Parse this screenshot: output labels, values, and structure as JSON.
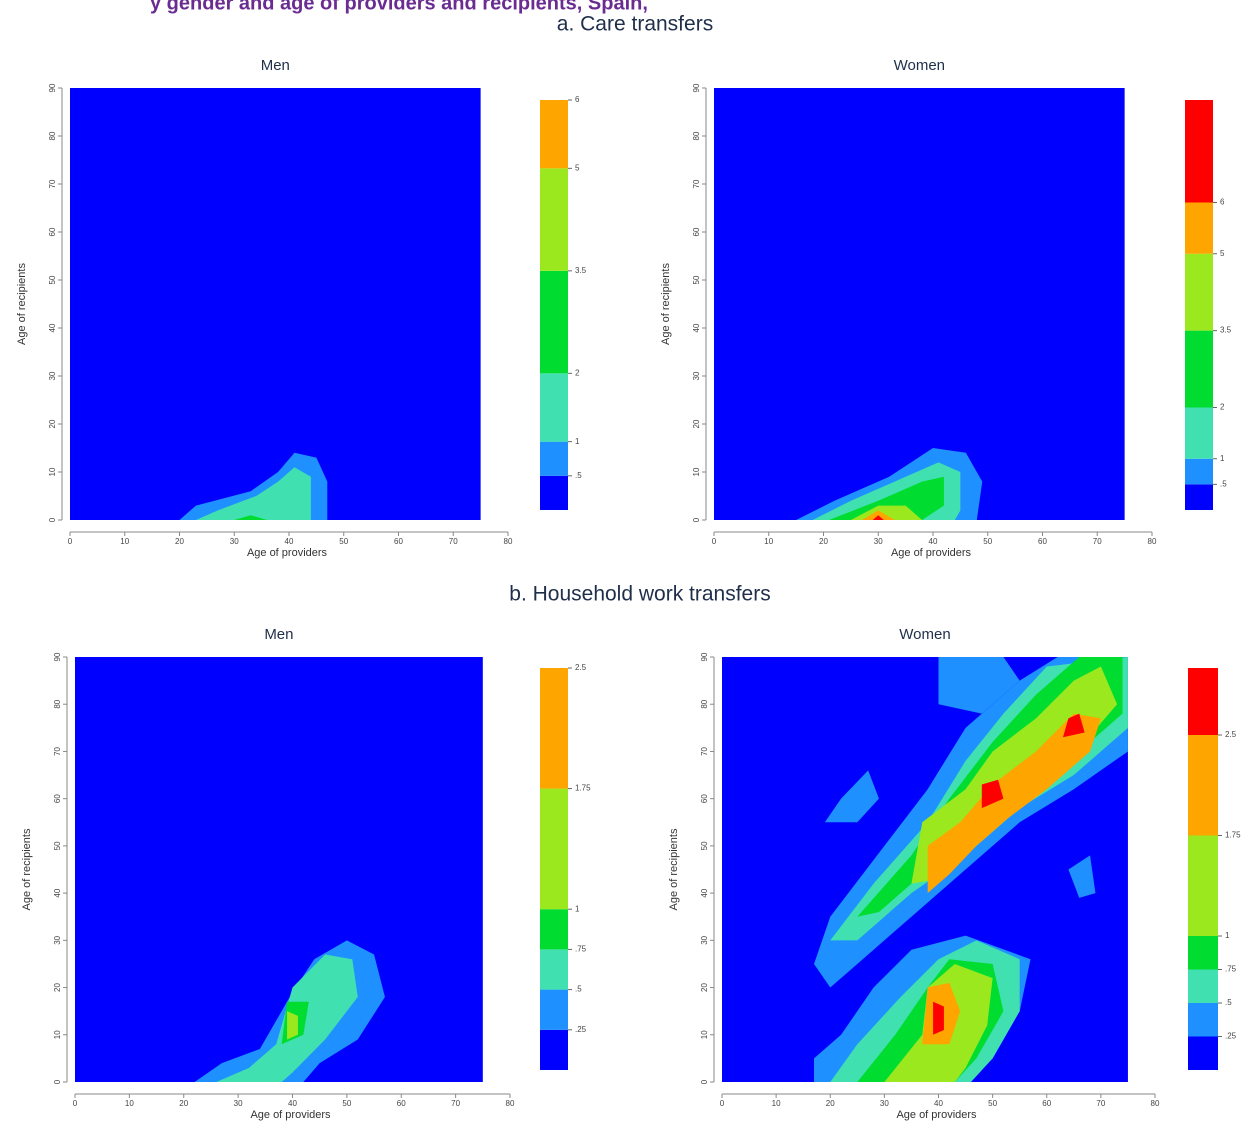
{
  "header": {
    "title": "y gender and age of providers and recipients, Spain,",
    "sections": [
      "a. Care transfers",
      "b. Household work transfers"
    ]
  },
  "chart_data": [
    {
      "type": "contour",
      "title": "Men",
      "xlabel": "Age of providers",
      "ylabel": "Age of recipients",
      "xlim": [
        0,
        80
      ],
      "xticks": [
        0,
        10,
        20,
        30,
        40,
        50,
        60,
        70,
        80
      ],
      "ylim": [
        0,
        90
      ],
      "yticks": [
        0,
        10,
        20,
        30,
        40,
        50,
        60,
        70,
        80,
        90
      ],
      "zlim": [
        0,
        6
      ],
      "zticks": [
        {
          "value": 0.5,
          "label": ".5"
        },
        1,
        2,
        3.5,
        5,
        6
      ],
      "colors": [
        "#0000ff",
        "#1e90ff",
        "#40e0b0",
        "#00dd30",
        "#9be81e",
        "#ffa500",
        "#ff0000"
      ],
      "regions": [
        {
          "band": 0,
          "x": [
            0,
            75,
            75,
            0
          ],
          "y": [
            0,
            0,
            90,
            90
          ]
        },
        {
          "band": 1,
          "x": [
            20,
            23,
            33,
            38,
            41,
            45,
            47,
            47
          ],
          "y": [
            0,
            3,
            6,
            10,
            14,
            13,
            8,
            0
          ]
        },
        {
          "band": 2,
          "x": [
            23,
            27,
            34,
            38,
            41,
            44,
            44
          ],
          "y": [
            0,
            2,
            5,
            8,
            11,
            9,
            0
          ]
        },
        {
          "band": 3,
          "x": [
            30,
            33,
            36
          ],
          "y": [
            0,
            1,
            0
          ]
        }
      ]
    },
    {
      "type": "contour",
      "title": "Women",
      "xlabel": "Age of providers",
      "ylabel": "Age of recipients",
      "xlim": [
        0,
        80
      ],
      "xticks": [
        0,
        10,
        20,
        30,
        40,
        50,
        60,
        70,
        80
      ],
      "ylim": [
        0,
        90
      ],
      "yticks": [
        0,
        10,
        20,
        30,
        40,
        50,
        60,
        70,
        80,
        90
      ],
      "zlim": [
        0,
        8
      ],
      "zticks": [
        {
          "value": 0.5,
          "label": ".5"
        },
        1,
        2,
        3.5,
        5,
        6
      ],
      "colors": [
        "#0000ff",
        "#1e90ff",
        "#40e0b0",
        "#00dd30",
        "#9be81e",
        "#ffa500",
        "#ff0000"
      ],
      "regions": [
        {
          "band": 0,
          "x": [
            0,
            75,
            75,
            0
          ],
          "y": [
            0,
            0,
            90,
            90
          ]
        },
        {
          "band": 1,
          "x": [
            15,
            22,
            32,
            40,
            46,
            49,
            48
          ],
          "y": [
            0,
            4,
            9,
            15,
            14,
            8,
            0
          ]
        },
        {
          "band": 2,
          "x": [
            18,
            25,
            35,
            41,
            45,
            45,
            44
          ],
          "y": [
            0,
            4,
            9,
            12,
            10,
            2,
            0
          ]
        },
        {
          "band": 3,
          "x": [
            21,
            30,
            38,
            42,
            42,
            38
          ],
          "y": [
            0,
            4,
            8,
            9,
            3,
            0
          ]
        },
        {
          "band": 4,
          "x": [
            25,
            30,
            35,
            38
          ],
          "y": [
            0,
            3,
            3,
            0
          ]
        },
        {
          "band": 5,
          "x": [
            27,
            30,
            33
          ],
          "y": [
            0,
            2,
            0
          ]
        },
        {
          "band": 6,
          "x": [
            29,
            30,
            31
          ],
          "y": [
            0,
            1,
            0
          ]
        }
      ]
    },
    {
      "type": "contour",
      "title": "Men",
      "xlabel": "Age of providers",
      "ylabel": "Age of recipients",
      "xlim": [
        0,
        80
      ],
      "xticks": [
        0,
        10,
        20,
        30,
        40,
        50,
        60,
        70,
        80
      ],
      "ylim": [
        0,
        90
      ],
      "yticks": [
        0,
        10,
        20,
        30,
        40,
        50,
        60,
        70,
        80,
        90
      ],
      "zlim": [
        0,
        2.5
      ],
      "zticks": [
        {
          "value": 0.25,
          "label": ".25"
        },
        {
          "value": 0.5,
          "label": ".5"
        },
        {
          "value": 0.75,
          "label": ".75"
        },
        1,
        1.75,
        2.5
      ],
      "colors": [
        "#0000ff",
        "#1e90ff",
        "#40e0b0",
        "#00dd30",
        "#9be81e",
        "#ffa500",
        "#ff0000"
      ],
      "regions": [
        {
          "band": 0,
          "x": [
            0,
            75,
            75,
            0
          ],
          "y": [
            0,
            0,
            90,
            90
          ]
        },
        {
          "band": 1,
          "x": [
            22,
            27,
            34,
            40,
            44,
            50,
            55,
            57,
            52,
            45,
            42
          ],
          "y": [
            0,
            4,
            7,
            19,
            26,
            30,
            27,
            18,
            9,
            4,
            0
          ]
        },
        {
          "band": 2,
          "x": [
            26,
            32,
            37,
            40,
            46,
            51,
            52,
            46,
            40,
            38
          ],
          "y": [
            0,
            3,
            8,
            20,
            27,
            26,
            18,
            9,
            2,
            0
          ]
        },
        {
          "band": 3,
          "x": [
            38,
            39,
            43,
            42
          ],
          "y": [
            8,
            17,
            17,
            10
          ]
        },
        {
          "band": 4,
          "x": [
            39,
            39,
            41,
            41
          ],
          "y": [
            9,
            15,
            14,
            10
          ]
        }
      ]
    },
    {
      "type": "contour",
      "title": "Women",
      "xlabel": "Age of providers",
      "ylabel": "Age of recipients",
      "xlim": [
        0,
        80
      ],
      "xticks": [
        0,
        10,
        20,
        30,
        40,
        50,
        60,
        70,
        80
      ],
      "ylim": [
        0,
        90
      ],
      "yticks": [
        0,
        10,
        20,
        30,
        40,
        50,
        60,
        70,
        80,
        90
      ],
      "zlim": [
        0,
        3
      ],
      "zticks": [
        {
          "value": 0.25,
          "label": ".25"
        },
        {
          "value": 0.5,
          "label": ".5"
        },
        {
          "value": 0.75,
          "label": ".75"
        },
        1,
        1.75,
        2.5
      ],
      "colors": [
        "#0000ff",
        "#1e90ff",
        "#40e0b0",
        "#00dd30",
        "#9be81e",
        "#ffa500",
        "#ff0000"
      ],
      "regions": [
        {
          "band": 0,
          "x": [
            0,
            75,
            75,
            0
          ],
          "y": [
            0,
            0,
            90,
            90
          ]
        },
        {
          "band": 1,
          "x": [
            17,
            20,
            30,
            38,
            45,
            55,
            62,
            75,
            75,
            65,
            55,
            45,
            35,
            25,
            20
          ],
          "y": [
            25,
            35,
            50,
            62,
            75,
            85,
            90,
            90,
            70,
            62,
            55,
            45,
            35,
            25,
            20
          ]
        },
        {
          "band": 1,
          "x": [
            17,
            17,
            22,
            28,
            35,
            45,
            57,
            55,
            50,
            45
          ],
          "y": [
            0,
            5,
            10,
            20,
            28,
            31,
            26,
            15,
            5,
            0
          ]
        },
        {
          "band": 1,
          "x": [
            40,
            40,
            48,
            55,
            52
          ],
          "y": [
            90,
            80,
            78,
            85,
            90
          ]
        },
        {
          "band": 1,
          "x": [
            19,
            22,
            27,
            29,
            25
          ],
          "y": [
            55,
            60,
            66,
            60,
            55
          ]
        },
        {
          "band": 1,
          "x": [
            64,
            66,
            69,
            68
          ],
          "y": [
            45,
            39,
            40,
            48
          ]
        },
        {
          "band": 2,
          "x": [
            20,
            28,
            38,
            45,
            52,
            60,
            75,
            75,
            65,
            55,
            45,
            35,
            25
          ],
          "y": [
            30,
            42,
            55,
            68,
            78,
            88,
            90,
            75,
            65,
            58,
            48,
            40,
            30
          ]
        },
        {
          "band": 2,
          "x": [
            20,
            25,
            33,
            40,
            47,
            55,
            55,
            50,
            46
          ],
          "y": [
            0,
            8,
            18,
            26,
            30,
            26,
            15,
            5,
            0
          ]
        },
        {
          "band": 3,
          "x": [
            25,
            35,
            42,
            50,
            58,
            66,
            74,
            74,
            66,
            57,
            47,
            37,
            29
          ],
          "y": [
            35,
            48,
            60,
            72,
            82,
            90,
            90,
            78,
            70,
            62,
            52,
            44,
            36
          ]
        },
        {
          "band": 3,
          "x": [
            25,
            32,
            38,
            42,
            50,
            52,
            47,
            43
          ],
          "y": [
            0,
            10,
            20,
            26,
            25,
            15,
            5,
            0
          ]
        },
        {
          "band": 4,
          "x": [
            35,
            37,
            45,
            50,
            58,
            65,
            70,
            73,
            67,
            60,
            52,
            45,
            40
          ],
          "y": [
            42,
            55,
            62,
            70,
            77,
            85,
            88,
            80,
            72,
            65,
            58,
            50,
            43
          ]
        },
        {
          "band": 4,
          "x": [
            30,
            37,
            38,
            43,
            50,
            49,
            45,
            43
          ],
          "y": [
            0,
            10,
            20,
            25,
            22,
            12,
            3,
            0
          ]
        },
        {
          "band": 5,
          "x": [
            38,
            38,
            44,
            50,
            58,
            65,
            70,
            68,
            60,
            53,
            47,
            42
          ],
          "y": [
            40,
            50,
            55,
            63,
            70,
            78,
            77,
            70,
            62,
            56,
            50,
            44
          ]
        },
        {
          "band": 5,
          "x": [
            37,
            38,
            42,
            44,
            42
          ],
          "y": [
            8,
            20,
            21,
            15,
            8
          ]
        },
        {
          "band": 6,
          "x": [
            48,
            48,
            51,
            52
          ],
          "y": [
            58,
            63,
            64,
            60
          ]
        },
        {
          "band": 6,
          "x": [
            63,
            64,
            66,
            67
          ],
          "y": [
            73,
            77,
            78,
            74
          ]
        },
        {
          "band": 6,
          "x": [
            39,
            39,
            41,
            41
          ],
          "y": [
            10,
            17,
            16,
            11
          ]
        }
      ]
    }
  ]
}
